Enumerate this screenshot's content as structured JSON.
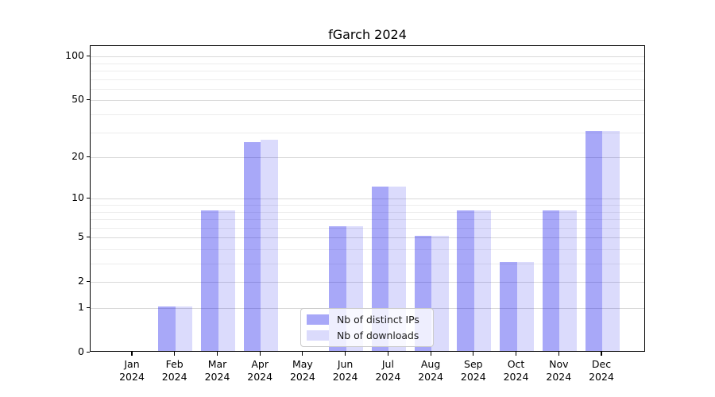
{
  "chart_data": {
    "type": "bar",
    "title": "fGarch 2024",
    "scale": "log1p",
    "categories": [
      "Jan 2024",
      "Feb 2024",
      "Mar 2024",
      "Apr 2024",
      "May 2024",
      "Jun 2024",
      "Jul 2024",
      "Aug 2024",
      "Sep 2024",
      "Oct 2024",
      "Nov 2024",
      "Dec 2024"
    ],
    "series": [
      {
        "name": "Nb of distinct IPs",
        "slug": "distinct-ips",
        "color": "rgba(0,0,235,0.34)",
        "color_hex": "#a9a9f8",
        "values": [
          0,
          1,
          8,
          25,
          0,
          6,
          12,
          5,
          8,
          3,
          8,
          30
        ]
      },
      {
        "name": "Nb of downloads",
        "slug": "downloads",
        "color": "rgba(0,0,235,0.14)",
        "color_hex": "#dcdcf9",
        "values": [
          0,
          1,
          8,
          26,
          0,
          6,
          12,
          5,
          8,
          3,
          8,
          30
        ]
      }
    ],
    "yticks": [
      0,
      1,
      2,
      5,
      10,
      20,
      50,
      100
    ],
    "minor_yticks": [
      3,
      4,
      6,
      7,
      8,
      9,
      30,
      40,
      60,
      70,
      80,
      90
    ],
    "ylim": [
      0,
      118
    ],
    "xlabel": "",
    "ylabel": "",
    "grid": true,
    "legend_position": "lower center"
  }
}
